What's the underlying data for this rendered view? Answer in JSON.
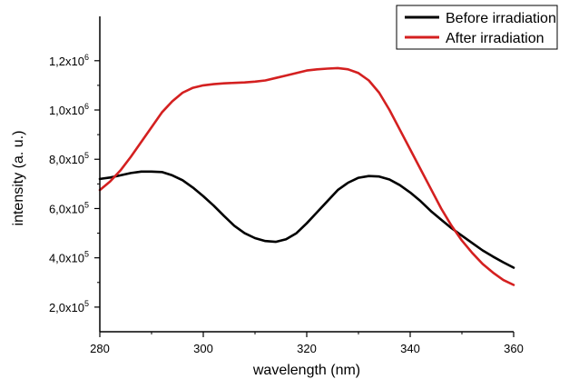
{
  "chart_data": {
    "type": "line",
    "title": "",
    "xlabel": "wavelength (nm)",
    "ylabel": "intensity (a. u.)",
    "xlim": [
      280,
      360
    ],
    "ylim": [
      100000,
      1380000
    ],
    "xticks": [
      {
        "value": 280,
        "label": "280"
      },
      {
        "value": 300,
        "label": "300"
      },
      {
        "value": 320,
        "label": "320"
      },
      {
        "value": 340,
        "label": "340"
      },
      {
        "value": 360,
        "label": "360"
      }
    ],
    "yticks": [
      {
        "value": 200000,
        "mantissa": "2,0x10",
        "exp": "5"
      },
      {
        "value": 400000,
        "mantissa": "4,0x10",
        "exp": "5"
      },
      {
        "value": 600000,
        "mantissa": "6,0x10",
        "exp": "5"
      },
      {
        "value": 800000,
        "mantissa": "8,0x10",
        "exp": "5"
      },
      {
        "value": 1000000,
        "mantissa": "1,0x10",
        "exp": "6"
      },
      {
        "value": 1200000,
        "mantissa": "1,2x10",
        "exp": "6"
      }
    ],
    "grid": false,
    "legend_position": "top-right",
    "series": [
      {
        "name": "Before irradiation",
        "color": "#000000",
        "x": [
          280,
          282,
          284,
          286,
          288,
          290,
          292,
          294,
          296,
          298,
          300,
          302,
          304,
          306,
          308,
          310,
          312,
          314,
          316,
          318,
          320,
          322,
          324,
          326,
          328,
          330,
          332,
          334,
          336,
          338,
          340,
          342,
          344,
          346,
          348,
          350,
          352,
          354,
          356,
          358,
          360
        ],
        "y": [
          720000,
          726000,
          735000,
          744000,
          750000,
          750000,
          748000,
          735000,
          715000,
          685000,
          650000,
          612000,
          570000,
          530000,
          500000,
          480000,
          468000,
          465000,
          475000,
          500000,
          540000,
          585000,
          630000,
          675000,
          705000,
          725000,
          732000,
          730000,
          718000,
          695000,
          665000,
          630000,
          590000,
          555000,
          520000,
          490000,
          460000,
          430000,
          405000,
          382000,
          360000
        ]
      },
      {
        "name": "After irradiation",
        "color": "#d42020",
        "x": [
          280,
          282,
          284,
          286,
          288,
          290,
          292,
          294,
          296,
          298,
          300,
          302,
          304,
          306,
          308,
          310,
          312,
          314,
          316,
          318,
          320,
          322,
          324,
          326,
          328,
          330,
          332,
          334,
          336,
          338,
          340,
          342,
          344,
          346,
          348,
          350,
          352,
          354,
          356,
          358,
          360
        ],
        "y": [
          675000,
          710000,
          755000,
          810000,
          870000,
          930000,
          990000,
          1035000,
          1070000,
          1090000,
          1100000,
          1105000,
          1108000,
          1110000,
          1112000,
          1115000,
          1120000,
          1130000,
          1140000,
          1150000,
          1160000,
          1165000,
          1168000,
          1170000,
          1165000,
          1150000,
          1120000,
          1070000,
          1000000,
          920000,
          840000,
          760000,
          680000,
          600000,
          530000,
          470000,
          420000,
          375000,
          340000,
          310000,
          290000
        ]
      }
    ]
  }
}
